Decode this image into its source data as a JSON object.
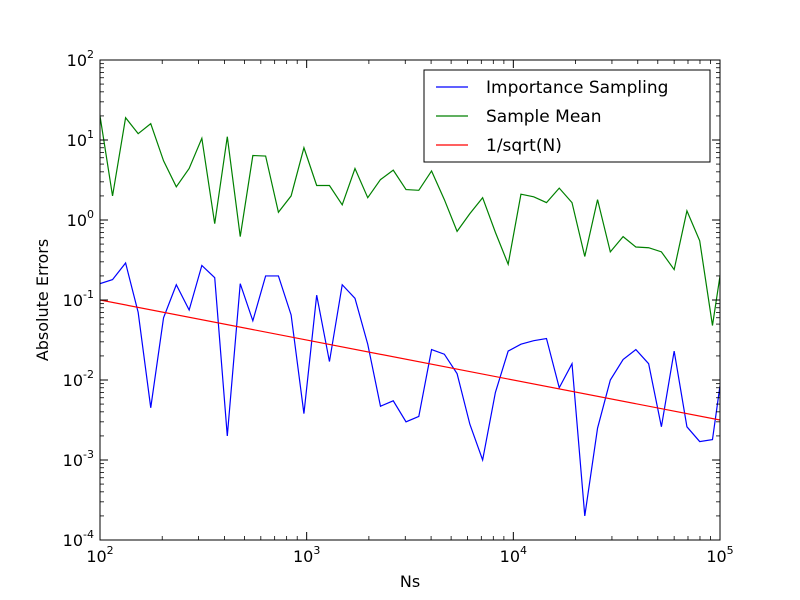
{
  "chart_data": {
    "type": "line",
    "title": "",
    "xlabel": "Ns",
    "ylabel": "Absolute Errors",
    "xscale": "log",
    "yscale": "log",
    "xlim": [
      100,
      100000
    ],
    "ylim": [
      0.0001,
      100
    ],
    "x_ticks": [
      {
        "value": 100,
        "base": "10",
        "exp": "2"
      },
      {
        "value": 1000,
        "base": "10",
        "exp": "3"
      },
      {
        "value": 10000,
        "base": "10",
        "exp": "4"
      },
      {
        "value": 100000,
        "base": "10",
        "exp": "5"
      }
    ],
    "y_ticks": [
      {
        "value": 0.0001,
        "base": "10",
        "exp": "-4"
      },
      {
        "value": 0.001,
        "base": "10",
        "exp": "-3"
      },
      {
        "value": 0.01,
        "base": "10",
        "exp": "-2"
      },
      {
        "value": 0.1,
        "base": "10",
        "exp": "-1"
      },
      {
        "value": 1,
        "base": "10",
        "exp": "0"
      },
      {
        "value": 10,
        "base": "10",
        "exp": "1"
      },
      {
        "value": 100,
        "base": "10",
        "exp": "2"
      }
    ],
    "grid": false,
    "legend_position": "top-right",
    "x": [
      100,
      115,
      133,
      153,
      176,
      203,
      234,
      270,
      311,
      359,
      413,
      477,
      549,
      633,
      730,
      841,
      970,
      1118,
      1289,
      1486,
      1713,
      1975,
      2276,
      2624,
      3025,
      3488,
      4021,
      4636,
      5344,
      6161,
      7103,
      8189,
      9441,
      10884,
      12548,
      14467,
      16678,
      19228,
      22168,
      25557,
      29464,
      33968,
      39161,
      45148,
      52051,
      60008,
      69183,
      79760,
      91954,
      100000
    ],
    "series": [
      {
        "name": "Importance Sampling",
        "color": "#0000ff",
        "values": [
          0.16,
          0.18,
          0.29,
          0.07,
          0.0045,
          0.06,
          0.155,
          0.075,
          0.27,
          0.19,
          0.002,
          0.16,
          0.055,
          0.2,
          0.2,
          0.065,
          0.0038,
          0.115,
          0.017,
          0.155,
          0.105,
          0.028,
          0.0047,
          0.0055,
          0.003,
          0.0035,
          0.024,
          0.021,
          0.012,
          0.0028,
          0.001,
          0.007,
          0.023,
          0.028,
          0.031,
          0.033,
          0.008,
          0.016,
          0.0002,
          0.0025,
          0.01,
          0.018,
          0.024,
          0.016,
          0.0026,
          0.023,
          0.0026,
          0.0017,
          0.0018,
          0.0085
        ]
      },
      {
        "name": "Sample Mean",
        "color": "#008000",
        "values": [
          20,
          2,
          19,
          12,
          16,
          5.5,
          2.6,
          4.4,
          10.5,
          0.9,
          11,
          0.62,
          6.4,
          6.3,
          1.25,
          2,
          8,
          2.7,
          2.7,
          1.55,
          4.4,
          1.9,
          3.2,
          4.2,
          2.4,
          2.35,
          4.1,
          1.8,
          0.72,
          1.2,
          1.9,
          0.7,
          0.28,
          2.1,
          1.95,
          1.65,
          2.5,
          1.65,
          0.35,
          1.8,
          0.4,
          0.62,
          0.46,
          0.45,
          0.4,
          0.24,
          1.3,
          0.55,
          0.048,
          0.2
        ]
      },
      {
        "name": "1/sqrt(N)",
        "color": "#ff0000",
        "formula": "1/sqrt(N)",
        "x": [
          100,
          100000
        ],
        "values": [
          0.1,
          0.00316
        ]
      }
    ]
  }
}
